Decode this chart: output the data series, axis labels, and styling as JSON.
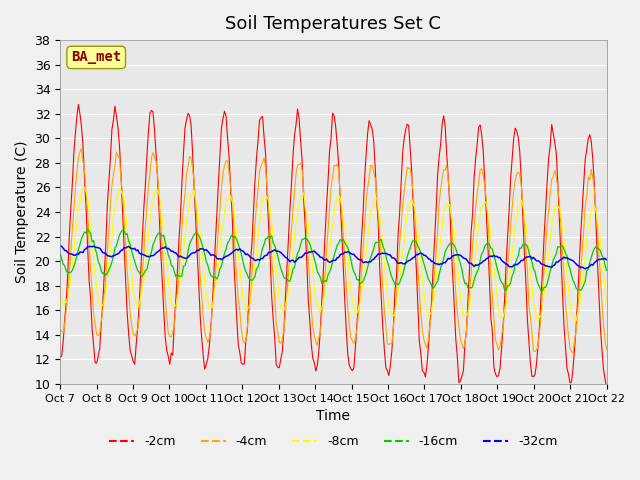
{
  "title": "Soil Temperatures Set C",
  "xlabel": "Time",
  "ylabel": "Soil Temperature (C)",
  "ylim": [
    10,
    38
  ],
  "yticks": [
    10,
    12,
    14,
    16,
    18,
    20,
    22,
    24,
    26,
    28,
    30,
    32,
    34,
    36,
    38
  ],
  "x_labels": [
    "Oct 7",
    "Oct 8",
    "Oct 9",
    "Oct 10",
    "Oct 11",
    "Oct 12",
    "Oct 13",
    "Oct 14",
    "Oct 15",
    "Oct 16",
    "Oct 17",
    "Oct 18",
    "Oct 19",
    "Oct 20",
    "Oct 21",
    "Oct 22"
  ],
  "n_days": 15,
  "annotation_text": "BA_met",
  "annotation_color": "#8B0000",
  "annotation_bg": "#FFFF99",
  "colors": {
    "-2cm": "#FF0000",
    "-4cm": "#FFA500",
    "-8cm": "#FFFF00",
    "-16cm": "#00CC00",
    "-32cm": "#0000FF"
  },
  "plot_bg": "#E8E8E8",
  "title_fontsize": 13,
  "axis_fontsize": 10,
  "tick_fontsize": 9,
  "legend_fontsize": 9,
  "points_per_day": 24
}
